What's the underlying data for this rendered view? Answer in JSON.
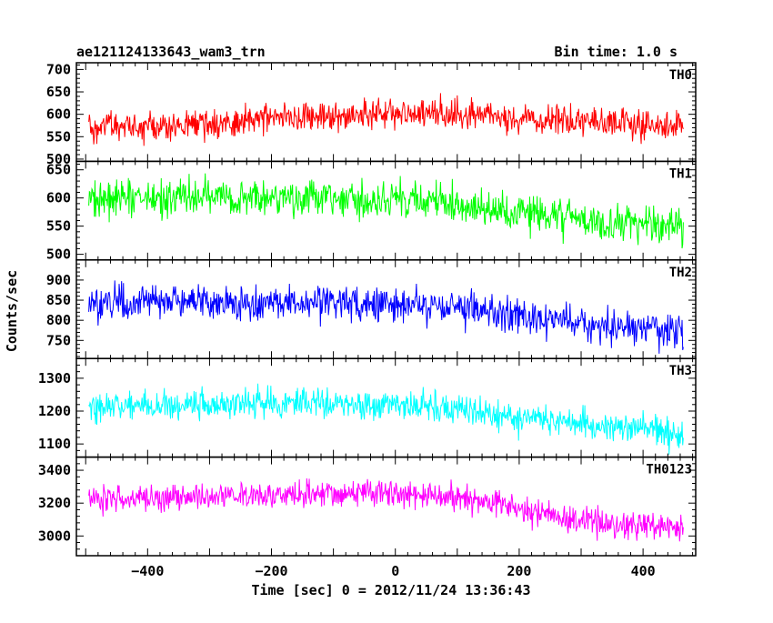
{
  "header": {
    "title": "ae121124133643_wam3_trn",
    "bin_time": "Bin time: 1.0 s"
  },
  "chart_data": {
    "type": "line",
    "xlabel": "Time [sec] 0 = 2012/11/24 13:36:43",
    "ylabel": "Counts/sec",
    "xlim": [
      -515,
      485
    ],
    "xticks": [
      -400,
      -200,
      0,
      200,
      400
    ],
    "x_start": -495,
    "x_end": 465,
    "x_step": 1,
    "grid": false,
    "series": [
      {
        "name": "TH0",
        "color": "#ff0000",
        "ylim": [
          495,
          715
        ],
        "yticks": [
          500,
          550,
          600,
          650,
          700
        ],
        "trend": [
          [
            -495,
            565
          ],
          [
            -300,
            580
          ],
          [
            -200,
            588
          ],
          [
            -100,
            594
          ],
          [
            0,
            605
          ],
          [
            100,
            600
          ],
          [
            200,
            590
          ],
          [
            300,
            585
          ],
          [
            465,
            570
          ]
        ],
        "noise": 28
      },
      {
        "name": "TH1",
        "color": "#00ff00",
        "ylim": [
          490,
          665
        ],
        "yticks": [
          500,
          550,
          600,
          650
        ],
        "trend": [
          [
            -495,
            600
          ],
          [
            -300,
            602
          ],
          [
            -100,
            598
          ],
          [
            0,
            597
          ],
          [
            100,
            590
          ],
          [
            200,
            575
          ],
          [
            300,
            562
          ],
          [
            465,
            550
          ]
        ],
        "noise": 28
      },
      {
        "name": "TH2",
        "color": "#0000ff",
        "ylim": [
          705,
          950
        ],
        "yticks": [
          750,
          800,
          850,
          900
        ],
        "trend": [
          [
            -495,
            845
          ],
          [
            -300,
            845
          ],
          [
            -100,
            842
          ],
          [
            0,
            840
          ],
          [
            100,
            830
          ],
          [
            200,
            810
          ],
          [
            300,
            790
          ],
          [
            465,
            775
          ]
        ],
        "noise": 35
      },
      {
        "name": "TH3",
        "color": "#00ffff",
        "ylim": [
          1060,
          1360
        ],
        "yticks": [
          1100,
          1200,
          1300
        ],
        "trend": [
          [
            -495,
            1215
          ],
          [
            -300,
            1222
          ],
          [
            -100,
            1225
          ],
          [
            0,
            1220
          ],
          [
            100,
            1205
          ],
          [
            200,
            1180
          ],
          [
            300,
            1160
          ],
          [
            465,
            1130
          ]
        ],
        "noise": 40
      },
      {
        "name": "TH0123",
        "color": "#ff00ff",
        "ylim": [
          2880,
          3480
        ],
        "yticks": [
          3000,
          3200,
          3400
        ],
        "trend": [
          [
            -495,
            3220
          ],
          [
            -300,
            3240
          ],
          [
            -100,
            3260
          ],
          [
            0,
            3255
          ],
          [
            100,
            3230
          ],
          [
            200,
            3170
          ],
          [
            300,
            3090
          ],
          [
            465,
            3040
          ]
        ],
        "noise": 70
      }
    ]
  }
}
